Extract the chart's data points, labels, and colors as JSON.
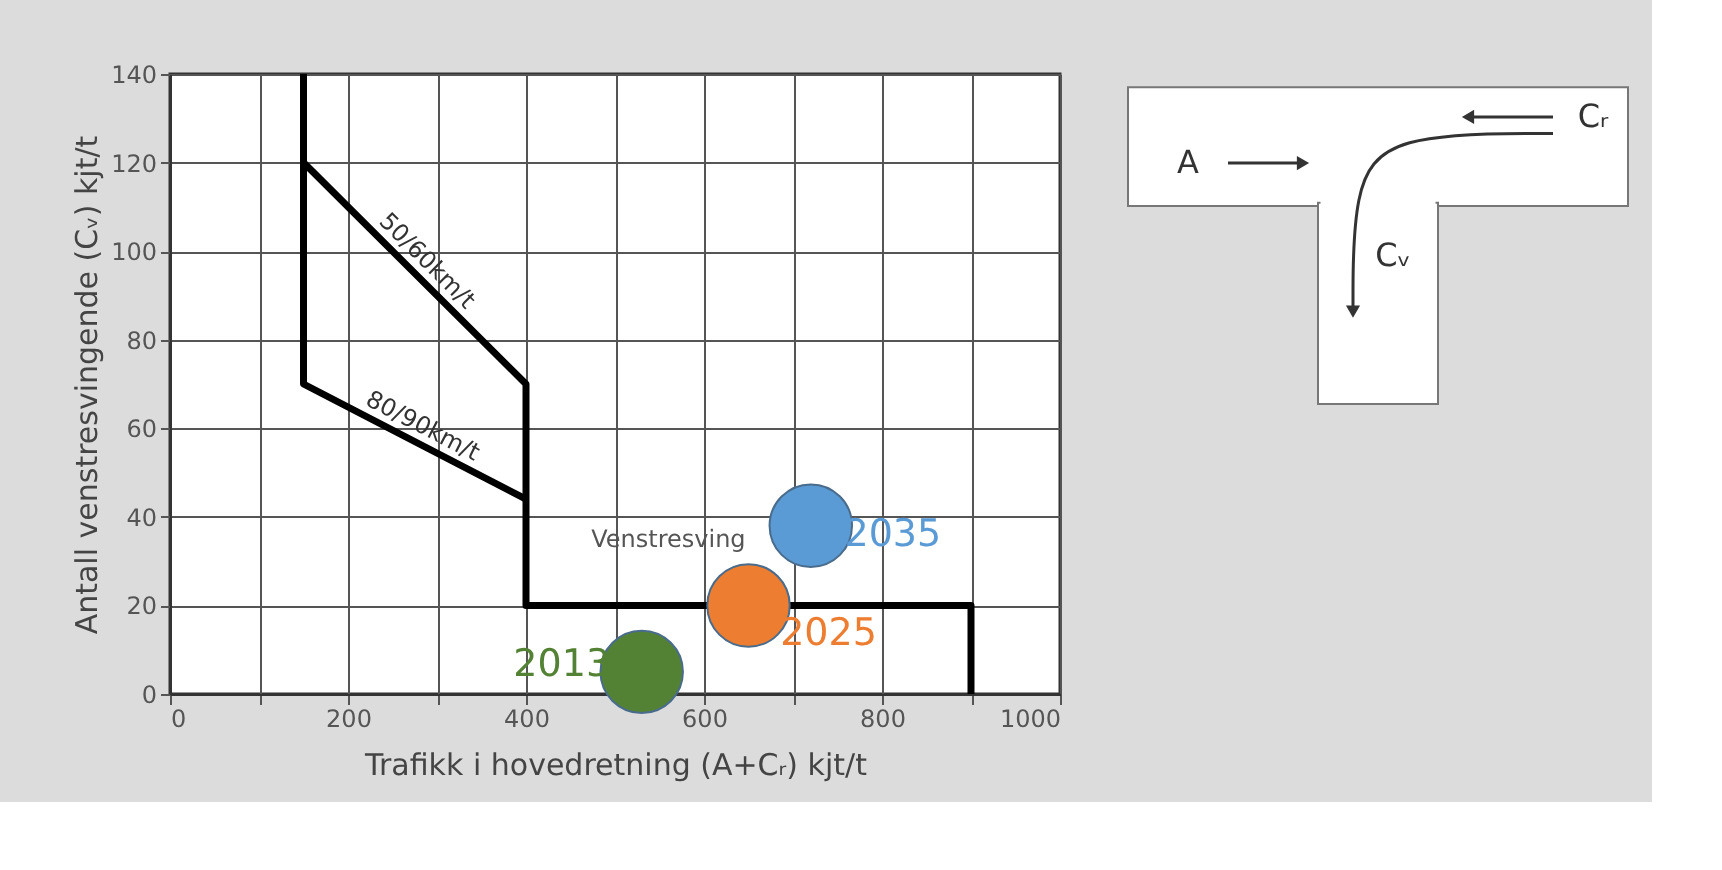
{
  "chart_data": {
    "type": "line",
    "xlabel": "Trafikk i hovedretning (A+Cᵣ) kjt/t",
    "ylabel": "Antall venstresvingende (Cᵥ) kjt/t",
    "xlim": [
      0,
      1000
    ],
    "ylim": [
      0,
      140
    ],
    "xticks": [
      0,
      {
        "value": 100,
        "label": null
      },
      200,
      {
        "value": 300,
        "label": null
      },
      400,
      {
        "value": 500,
        "label": null
      },
      600,
      {
        "value": 700,
        "label": null
      },
      800,
      {
        "value": 900,
        "label": null
      },
      1000
    ],
    "yticks": [
      0,
      20,
      40,
      60,
      80,
      100,
      120,
      140
    ],
    "grid": true,
    "series": [
      {
        "name": "50/60km/t",
        "color": "#000000",
        "x": [
          150,
          150,
          400,
          400,
          900,
          900
        ],
        "values": [
          140,
          120,
          70,
          20,
          20,
          0
        ]
      },
      {
        "name": "80/90km/t",
        "color": "#000000",
        "x": [
          150,
          150,
          400
        ],
        "values": [
          120,
          70,
          44
        ]
      },
      {
        "name": "2013",
        "type": "scatter",
        "color": "#548235",
        "x": [
          530
        ],
        "values": [
          5
        ]
      },
      {
        "name": "2025",
        "type": "scatter",
        "color": "#ed7d31",
        "x": [
          650
        ],
        "values": [
          20
        ]
      },
      {
        "name": "2035",
        "type": "scatter",
        "color": "#5b9bd5",
        "x": [
          720
        ],
        "values": [
          38
        ]
      }
    ],
    "annotations": [
      "Venstresving",
      "A",
      "Cᵣ",
      "Cᵥ"
    ]
  }
}
